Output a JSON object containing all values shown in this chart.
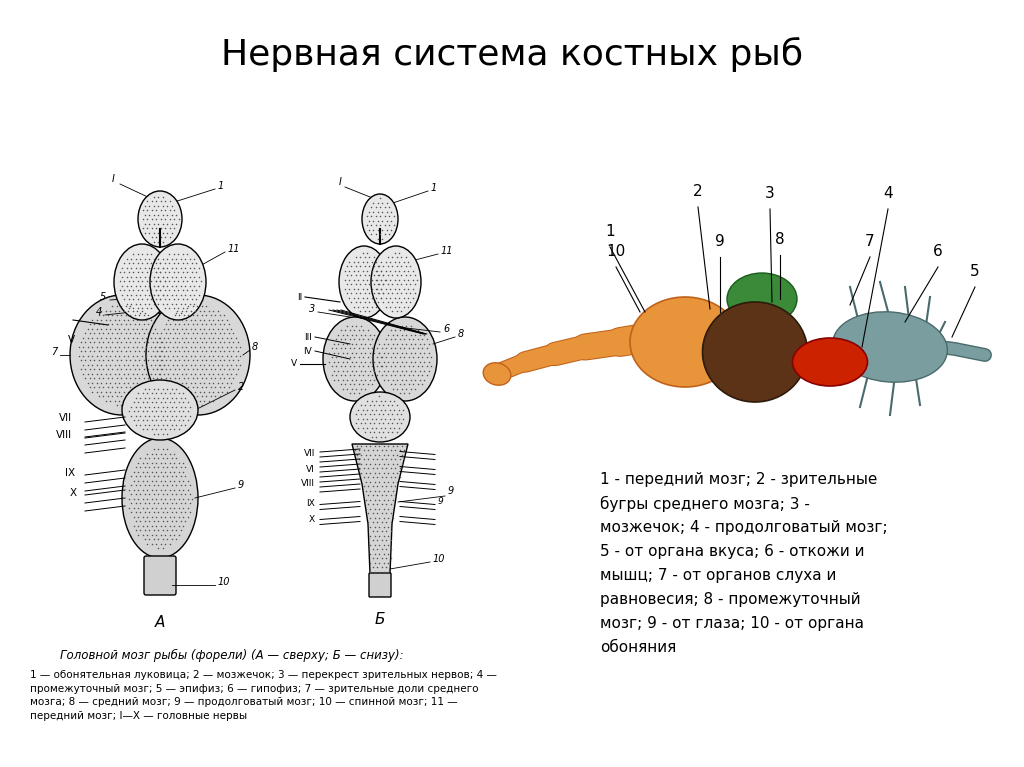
{
  "title": "Нервная система костных рыб",
  "title_fontsize": 26,
  "bg_color": "#ffffff",
  "text_color": "#000000",
  "caption_A": "Головной мозг рыбы (форели) (А — сверху; Б — снизу):",
  "caption_B": "1 — обонятельная луковица; 2 — мозжечок; 3 — перекрест зрительных нервов; 4 —\nпромежуточный мозг; 5 — эпифиз; 6 — гипофиз; 7 — зрительные доли среднего\nмозга; 8 — средний мозг; 9 — продолговатый мозг; 10 — спинной мозг; 11 —\nпередний мозг; I—X — головные нервы",
  "brain_colors": {
    "front": "#E8943A",
    "mid_tectum": "#5C3317",
    "cerebellum": "#CC2200",
    "medulla": "#7A9E9F",
    "green_lower": "#3A8A3A",
    "orange_edge": "#C0621A"
  },
  "legend_lines": [
    "1 - передний мозг; 2 - зрительные",
    "бугры среднего мозга; 3 -",
    "мозжечок; 4 - продолговатый мозг;",
    "5 - от органана вкуса; 6 - откожи и",
    "мышц; 7 - от органов слуха и",
    "равновесия; 8 - промежуточный",
    "мозг; 9 - от глаза; 10 - от органа",
    "обоняния"
  ]
}
